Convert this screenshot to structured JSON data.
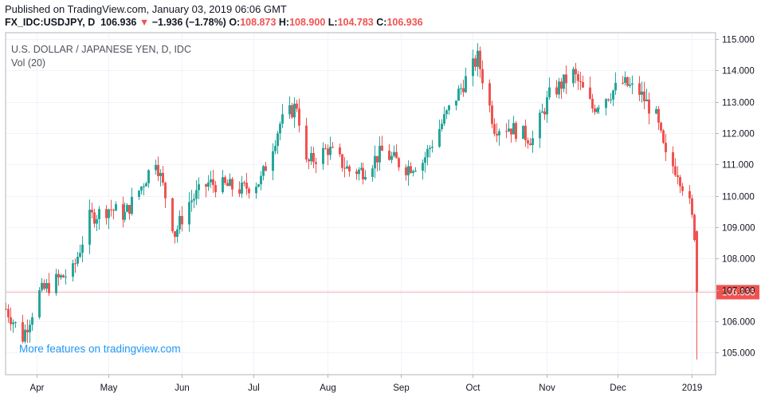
{
  "header": {
    "published": "Published on TradingView.com, January 03, 2019 06:06 GMT",
    "symbol": "FX_IDC:USDJPY, D",
    "last": "106.936",
    "change_arrow": "▼",
    "change": "−1.936 (−1.78%)",
    "o_label": "O:",
    "o_value": "108.873",
    "h_label": "H:",
    "h_value": "108.900",
    "l_label": "L:",
    "l_value": "104.783",
    "c_label": "C:",
    "c_value": "106.936"
  },
  "chart_title": "U.S. DOLLAR / JAPANESE YEN, D, IDC",
  "volume_label": "Vol (20)",
  "promo_link": "More features on tradingview.com",
  "colors": {
    "up": "#26a69a",
    "down": "#ef5350",
    "grid": "#f0f3fa",
    "axis": "#b2b5be",
    "last_price": "#ef5350"
  },
  "chart_data": {
    "type": "candlestick",
    "title": "U.S. DOLLAR / JAPANESE YEN, D, IDC",
    "ylim": [
      104.3,
      115.2
    ],
    "y_ticks": [
      "115.000",
      "114.000",
      "113.000",
      "112.000",
      "111.000",
      "110.000",
      "109.000",
      "108.000",
      "107.000",
      "106.000",
      "105.000"
    ],
    "x_range": [
      "2018-03-19",
      "2019-01-11"
    ],
    "x_ticks": [
      {
        "date": "2018-04-01",
        "label": "Apr"
      },
      {
        "date": "2018-05-01",
        "label": "May"
      },
      {
        "date": "2018-06-01",
        "label": "Jun"
      },
      {
        "date": "2018-07-01",
        "label": "Jul"
      },
      {
        "date": "2018-08-01",
        "label": "Aug"
      },
      {
        "date": "2018-09-01",
        "label": "Sep"
      },
      {
        "date": "2018-10-01",
        "label": "Oct"
      },
      {
        "date": "2018-11-01",
        "label": "Nov"
      },
      {
        "date": "2018-12-01",
        "label": "Dec"
      },
      {
        "date": "2019-01-01",
        "label": "2019"
      }
    ],
    "last_price": "106.936",
    "ohlc_anchors": [
      {
        "date": "2018-03-19",
        "close": 106.4
      },
      {
        "date": "2018-03-26",
        "close": 105.5
      },
      {
        "date": "2018-04-02",
        "close": 106.9
      },
      {
        "date": "2018-04-09",
        "close": 107.3
      },
      {
        "date": "2018-04-16",
        "close": 107.6
      },
      {
        "date": "2018-04-23",
        "close": 109.3
      },
      {
        "date": "2018-05-01",
        "close": 109.6
      },
      {
        "date": "2018-05-08",
        "close": 109.4
      },
      {
        "date": "2018-05-15",
        "close": 110.3
      },
      {
        "date": "2018-05-21",
        "close": 111.2
      },
      {
        "date": "2018-05-29",
        "close": 108.8
      },
      {
        "date": "2018-06-04",
        "close": 109.8
      },
      {
        "date": "2018-06-12",
        "close": 110.4
      },
      {
        "date": "2018-06-20",
        "close": 110.3
      },
      {
        "date": "2018-06-26",
        "close": 110.2
      },
      {
        "date": "2018-07-04",
        "close": 110.5
      },
      {
        "date": "2018-07-12",
        "close": 112.3
      },
      {
        "date": "2018-07-19",
        "close": 112.9
      },
      {
        "date": "2018-07-23",
        "close": 111.0
      },
      {
        "date": "2018-08-01",
        "close": 111.5
      },
      {
        "date": "2018-08-10",
        "close": 110.8
      },
      {
        "date": "2018-08-16",
        "close": 110.8
      },
      {
        "date": "2018-08-24",
        "close": 111.4
      },
      {
        "date": "2018-09-03",
        "close": 110.9
      },
      {
        "date": "2018-09-10",
        "close": 111.1
      },
      {
        "date": "2018-09-20",
        "close": 112.6
      },
      {
        "date": "2018-10-03",
        "close": 114.4
      },
      {
        "date": "2018-10-10",
        "close": 112.2
      },
      {
        "date": "2018-10-16",
        "close": 112.2
      },
      {
        "date": "2018-10-26",
        "close": 111.8
      },
      {
        "date": "2018-11-02",
        "close": 113.2
      },
      {
        "date": "2018-11-12",
        "close": 113.9
      },
      {
        "date": "2018-11-20",
        "close": 112.8
      },
      {
        "date": "2018-12-03",
        "close": 113.6
      },
      {
        "date": "2018-12-10",
        "close": 113.3
      },
      {
        "date": "2018-12-17",
        "close": 112.5
      },
      {
        "date": "2018-12-21",
        "close": 111.2
      },
      {
        "date": "2018-12-26",
        "close": 110.8
      },
      {
        "date": "2018-12-31",
        "close": 109.7
      },
      {
        "date": "2019-01-02",
        "close": 108.8
      },
      {
        "date": "2019-01-03",
        "open": 108.873,
        "high": 108.9,
        "low": 104.783,
        "close": 106.936
      }
    ]
  }
}
